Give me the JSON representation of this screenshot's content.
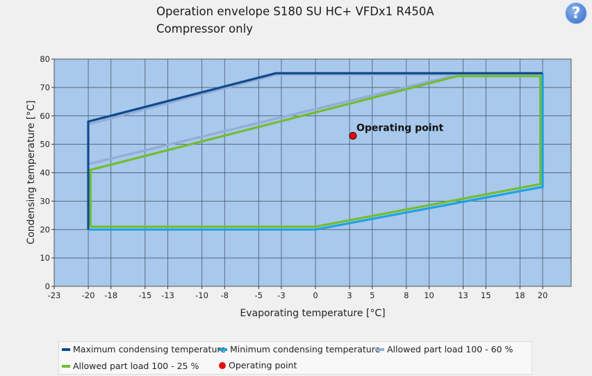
{
  "header": {
    "title_line1": "Operation envelope S180  SU HC+ VFDx1 R450A",
    "title_line2": "Compressor only",
    "help_glyph": "?"
  },
  "chart_data": {
    "type": "line",
    "xlabel": "Evaporating temperature [°C]",
    "ylabel": "Condensing temperature [°C]",
    "xlim": [
      -23,
      20
    ],
    "ylim": [
      0,
      80
    ],
    "x_ticks": [
      -23,
      -20,
      -18,
      -15,
      -13,
      -10,
      -8,
      -5,
      -3,
      0,
      3,
      5,
      8,
      10,
      13,
      15,
      18,
      20
    ],
    "y_ticks": [
      0,
      10,
      20,
      30,
      40,
      50,
      60,
      70,
      80
    ],
    "grid": true,
    "plot_background": "#a8c8ec",
    "legend_position": "bottom",
    "series": [
      {
        "name": "Maximum condensing temperature",
        "color": "#0f4b8c",
        "points": [
          [
            -20,
            20
          ],
          [
            -20,
            58
          ],
          [
            -3.5,
            75
          ],
          [
            20,
            75
          ]
        ]
      },
      {
        "name": "Minimum condensing temperature",
        "color": "#1ea3e0",
        "points": [
          [
            -20,
            20
          ],
          [
            0,
            20
          ],
          [
            20,
            35
          ],
          [
            20,
            75
          ]
        ]
      },
      {
        "name": "Allowed part load 100 - 60 %",
        "color": "#94acd8",
        "points": [
          [
            -20,
            57
          ],
          [
            -3.5,
            74.5
          ],
          [
            20,
            74.5
          ],
          [
            20,
            75
          ],
          [
            12.5,
            74.5
          ],
          [
            -20,
            43
          ],
          [
            -20,
            57
          ]
        ]
      },
      {
        "name": "Allowed part load 100 - 25 %",
        "color": "#72bd2e",
        "points": [
          [
            -19.8,
            21
          ],
          [
            -19.8,
            41
          ],
          [
            12.5,
            74
          ],
          [
            19.8,
            74
          ],
          [
            19.8,
            36
          ],
          [
            0,
            21
          ],
          [
            -19.8,
            21
          ]
        ]
      }
    ],
    "operating_point": {
      "name": "Operating point",
      "label": "Operating point",
      "x": 3.3,
      "y": 53,
      "color": "#e01010"
    }
  }
}
